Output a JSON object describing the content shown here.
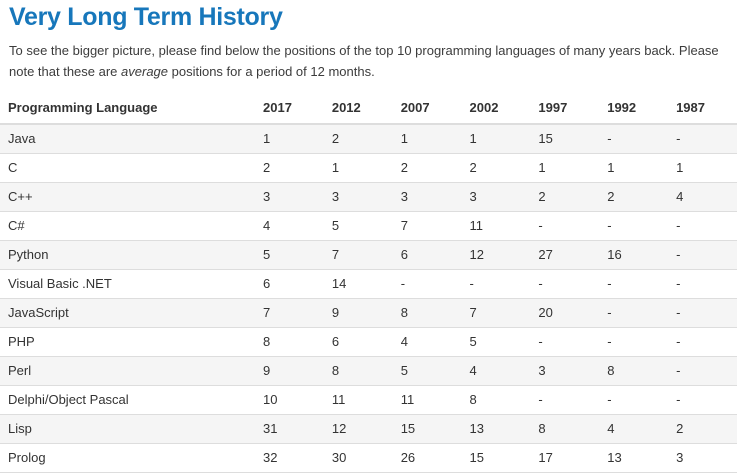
{
  "page_title": "Very Long Term History",
  "intro": {
    "text_before": "To see the bigger picture, please find below the positions of the top 10 programming languages of many years back. Please note that these are ",
    "emphasized": "average",
    "text_after": " positions for a period of 12 months."
  },
  "colors": {
    "heading_blue": "#1777bb",
    "row_stripe": "#f5f5f5",
    "table_border": "#dddddd",
    "body_text": "#333333"
  },
  "table": {
    "columns": [
      "Programming Language",
      "2017",
      "2012",
      "2007",
      "2002",
      "1997",
      "1992",
      "1987"
    ],
    "rows": [
      [
        "Java",
        "1",
        "2",
        "1",
        "1",
        "15",
        "-",
        "-"
      ],
      [
        "C",
        "2",
        "1",
        "2",
        "2",
        "1",
        "1",
        "1"
      ],
      [
        "C++",
        "3",
        "3",
        "3",
        "3",
        "2",
        "2",
        "4"
      ],
      [
        "C#",
        "4",
        "5",
        "7",
        "11",
        "-",
        "-",
        "-"
      ],
      [
        "Python",
        "5",
        "7",
        "6",
        "12",
        "27",
        "16",
        "-"
      ],
      [
        "Visual Basic .NET",
        "6",
        "14",
        "-",
        "-",
        "-",
        "-",
        "-"
      ],
      [
        "JavaScript",
        "7",
        "9",
        "8",
        "7",
        "20",
        "-",
        "-"
      ],
      [
        "PHP",
        "8",
        "6",
        "4",
        "5",
        "-",
        "-",
        "-"
      ],
      [
        "Perl",
        "9",
        "8",
        "5",
        "4",
        "3",
        "8",
        "-"
      ],
      [
        "Delphi/Object Pascal",
        "10",
        "11",
        "11",
        "8",
        "-",
        "-",
        "-"
      ],
      [
        "Lisp",
        "31",
        "12",
        "15",
        "13",
        "8",
        "4",
        "2"
      ],
      [
        "Prolog",
        "32",
        "30",
        "26",
        "15",
        "17",
        "13",
        "3"
      ]
    ]
  }
}
